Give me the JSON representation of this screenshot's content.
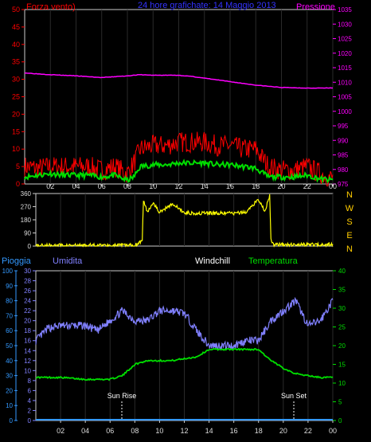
{
  "header": {
    "left": "Forza vento)",
    "center": "24 hore grafichate: 14 Maggio 2013",
    "right": "Pressione"
  },
  "colors": {
    "wind": "#ff0000",
    "gust_avg": "#00dd00",
    "pressure": "#ff00ff",
    "direction": "#ffff00",
    "humidity": "#8080ff",
    "temperature": "#00dd00",
    "rain": "#3399ff",
    "axis_text": "#ff0000",
    "time_text": "#dddddd"
  },
  "time_ticks": [
    "02",
    "04",
    "06",
    "08",
    "10",
    "12",
    "14",
    "16",
    "18",
    "20",
    "22",
    "00"
  ],
  "panel2": {
    "compass": [
      "N",
      "W",
      "S",
      "E",
      "N"
    ]
  },
  "panel3": {
    "labels": {
      "pioggia": "Pioggia",
      "umidita": "Umidita",
      "windchill": "Windchill",
      "temperatura": "Temperatura"
    },
    "annotations": {
      "sunrise": "Sun Rise",
      "sunset": "Sun Set"
    }
  },
  "chart_data": [
    {
      "type": "line",
      "title": "24 hore grafichate: 14 Maggio 2013",
      "x_unit": "hours since 00",
      "y_left": {
        "label": "Forza vento)",
        "ylim": [
          0,
          50
        ],
        "ticks": [
          0,
          5,
          10,
          15,
          20,
          25,
          30,
          35,
          40,
          45,
          50
        ]
      },
      "y_right": {
        "label": "Pressione",
        "ylim": [
          975,
          1035
        ],
        "ticks": [
          975,
          980,
          985,
          990,
          995,
          1000,
          1005,
          1010,
          1015,
          1020,
          1025,
          1030,
          1035
        ]
      },
      "series": [
        {
          "name": "Pressione",
          "axis": "right",
          "x": [
            0,
            2,
            4,
            6,
            8,
            9,
            10,
            12,
            13,
            14,
            16,
            17,
            18,
            19,
            20,
            22,
            24
          ],
          "y": [
            1013.2,
            1012.6,
            1012.2,
            1011.6,
            1012.2,
            1012.6,
            1012.4,
            1012.4,
            1012.0,
            1011.4,
            1010.2,
            1009.6,
            1009.0,
            1008.6,
            1008.2,
            1008.0,
            1008.0
          ]
        },
        {
          "axis": "left",
          "x": [
            0,
            1,
            2,
            3,
            4,
            5,
            6,
            7,
            8,
            8.5,
            9,
            10,
            11,
            12,
            13,
            14,
            15,
            16,
            17,
            18,
            19,
            20,
            21,
            22,
            23,
            24
          ],
          "y": [
            5,
            4.5,
            5,
            5,
            5,
            5,
            4,
            5,
            3,
            6,
            10,
            11,
            11,
            12,
            12,
            12,
            11,
            11,
            10,
            10,
            5,
            4,
            4,
            5,
            3,
            1.5
          ]
        },
        {
          "axis": "left",
          "x": [
            0,
            1,
            2,
            3,
            4,
            5,
            6,
            7,
            8,
            8.5,
            9,
            10,
            11,
            12,
            13,
            14,
            15,
            16,
            17,
            18,
            19,
            20,
            21,
            22,
            23,
            24
          ],
          "y": [
            2,
            2.5,
            3,
            2.5,
            2.5,
            2.5,
            2,
            2.5,
            1,
            2,
            5,
            5.5,
            5.5,
            6,
            6,
            6,
            5.5,
            5.5,
            5,
            4.5,
            2,
            2,
            2,
            2.5,
            1.5,
            1
          ]
        }
      ]
    },
    {
      "type": "line",
      "x_unit": "hours since 00",
      "ylim": [
        0,
        360
      ],
      "yticks": [
        0,
        90,
        180,
        270,
        360
      ],
      "series": [
        {
          "x": [
            0,
            8,
            8.6,
            8.7,
            9,
            9.5,
            10,
            11,
            12,
            13,
            14,
            15,
            16,
            17,
            17.5,
            18,
            18.5,
            18.9,
            19,
            19.2,
            24
          ],
          "y": [
            5,
            5,
            40,
            310,
            235,
            300,
            230,
            290,
            230,
            225,
            225,
            225,
            225,
            230,
            280,
            320,
            240,
            345,
            40,
            10,
            10
          ]
        }
      ]
    },
    {
      "type": "line",
      "x_unit": "hours since 00",
      "y_left_rain": {
        "label": "Pioggia",
        "ylim": [
          0,
          100
        ],
        "ticks": [
          0,
          10,
          20,
          30,
          40,
          50,
          60,
          70,
          80,
          90,
          100
        ]
      },
      "y_left_humidity": {
        "label": "Umidita",
        "ylim": [
          0,
          30
        ],
        "ticks": [
          0,
          2,
          4,
          6,
          8,
          10,
          12,
          14,
          16,
          18,
          20,
          22,
          24,
          26,
          28,
          30
        ]
      },
      "y_right_temperature": {
        "label": "Temperatura",
        "ylim": [
          0,
          40
        ],
        "ticks": [
          0,
          5,
          10,
          15,
          20,
          25,
          30,
          35,
          40
        ]
      },
      "series": [
        {
          "name": "Umidita",
          "axis": "humidity",
          "x": [
            0,
            1,
            2,
            3,
            4,
            5,
            6,
            7,
            8,
            9,
            10,
            11,
            12,
            13,
            14,
            15,
            16,
            17,
            18,
            19,
            20,
            21,
            22,
            23,
            24
          ],
          "y": [
            16,
            18.5,
            19,
            19,
            19,
            18,
            20,
            22,
            20,
            20,
            22,
            22,
            21.5,
            18,
            15,
            15,
            15,
            16,
            16,
            20,
            22,
            24,
            19,
            20,
            24
          ]
        },
        {
          "name": "Temperatura",
          "axis": "temperature",
          "x": [
            0,
            2,
            4,
            6,
            7,
            8,
            9,
            10,
            11,
            12,
            13,
            14,
            15,
            16,
            17,
            18,
            19,
            20,
            21,
            22,
            23,
            24
          ],
          "y": [
            11.5,
            11.5,
            11,
            11,
            12,
            15,
            16,
            16,
            16,
            16.5,
            17,
            19,
            19,
            19,
            19,
            19,
            16,
            14,
            12.5,
            12,
            11.5,
            11.5
          ]
        },
        {
          "name": "Pioggia",
          "axis": "rain",
          "x": [
            0,
            24
          ],
          "y": [
            0,
            0
          ]
        }
      ],
      "annotations": [
        {
          "label": "Sun Rise",
          "x": 6.95
        },
        {
          "label": "Sun Set",
          "x": 20.85
        }
      ]
    }
  ]
}
